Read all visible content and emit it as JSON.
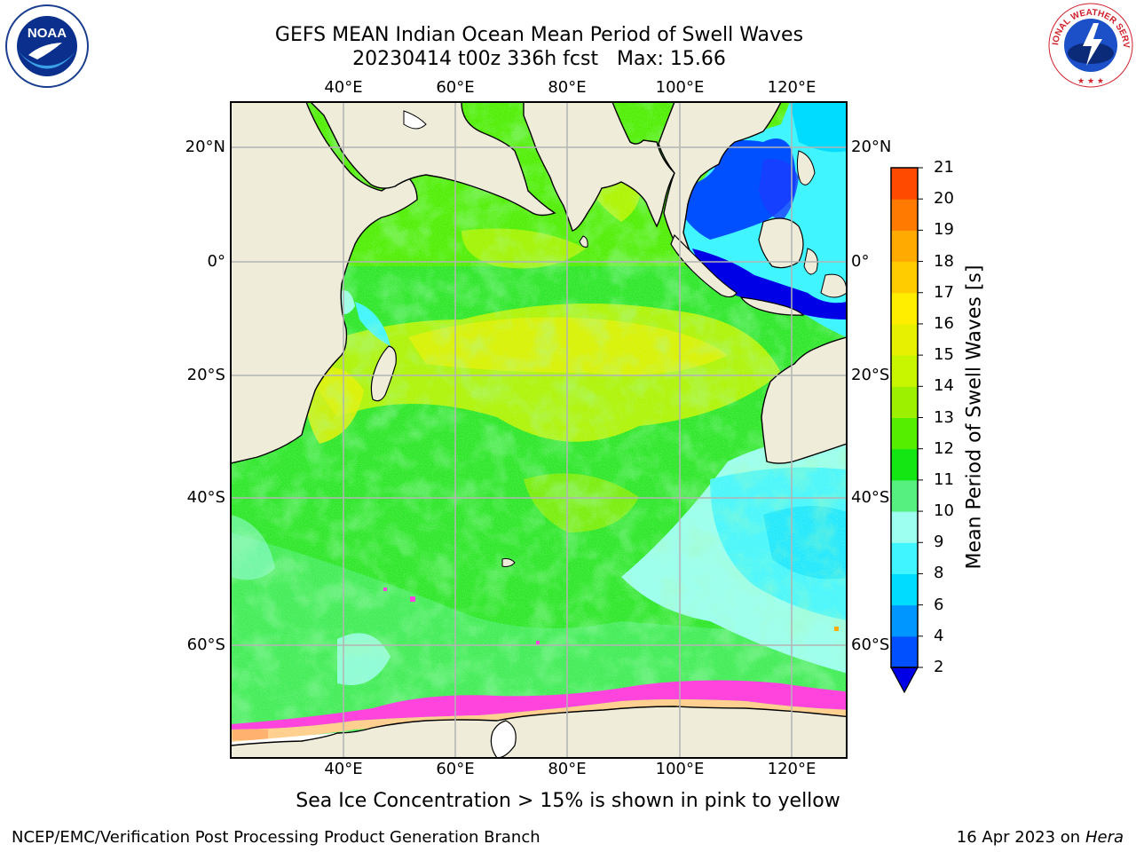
{
  "header": {
    "title_line1": "GEFS MEAN Indian Ocean Mean Period of Swell Waves",
    "title_line2": "20230414 t00z 336h fcst   Max: 15.66"
  },
  "logos": {
    "left": "NOAA",
    "right": "NATIONAL WEATHER SERVICE"
  },
  "map": {
    "lon_labels": [
      "40°E",
      "60°E",
      "80°E",
      "100°E",
      "120°E"
    ],
    "lat_labels": [
      "20°N",
      "0°",
      "20°S",
      "40°S",
      "60°S"
    ],
    "colors": {
      "land": "#efedd9",
      "grid": "#b4b4b4",
      "ice_pink": "#ff44dd",
      "ice_yellow": "#ffd090"
    }
  },
  "colorbar": {
    "title": "Mean Period of Swell Waves [s]",
    "tick_labels": [
      "2",
      "4",
      "6",
      "8",
      "9",
      "10",
      "11",
      "12",
      "13",
      "14",
      "15",
      "16",
      "17",
      "18",
      "19",
      "20",
      "21"
    ],
    "colors": [
      "#0050ff",
      "#0096ff",
      "#00dcff",
      "#40f5ff",
      "#9cfff0",
      "#55f080",
      "#14e614",
      "#55ee00",
      "#9cf000",
      "#c8f500",
      "#e6f000",
      "#ffee00",
      "#ffcc00",
      "#ffaa00",
      "#ff7a00",
      "#ff4a00",
      "#ff1400"
    ],
    "under_color": "#0000e6"
  },
  "footer": {
    "note": "Sea Ice Concentration > 15% is shown in pink to yellow",
    "left": "NCEP/EMC/Verification Post Processing Product Generation Branch",
    "right_date": "16 Apr 2023 on ",
    "right_host": "Hera"
  }
}
